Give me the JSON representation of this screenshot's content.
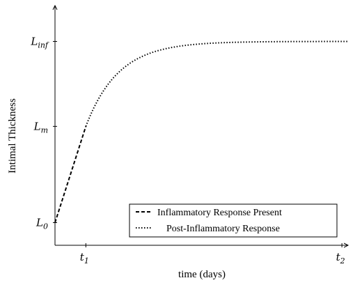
{
  "chart_data": {
    "type": "line",
    "title": "",
    "xlabel": "time (days)",
    "ylabel": "Intimal Thickness",
    "x_ticks": [
      {
        "base": "t",
        "sub": "1",
        "x": 1.0
      },
      {
        "base": "t",
        "sub": "2",
        "x": 9.3
      }
    ],
    "y_ticks": [
      {
        "base": "L",
        "sub": "0",
        "y": 0.0
      },
      {
        "base": "L",
        "sub": "m",
        "y": 0.51
      },
      {
        "base": "L",
        "sub": "inf",
        "y": 0.96
      }
    ],
    "xlim": [
      0,
      9.5
    ],
    "ylim": [
      -0.12,
      1.15
    ],
    "series": [
      {
        "name": "Inflammatory Response Present",
        "style": "dashed",
        "points": [
          [
            0.0,
            0.0
          ],
          [
            1.0,
            0.51
          ]
        ]
      },
      {
        "name": "Post-Inflammatory Response",
        "style": "dotted",
        "asymptote": 0.96,
        "points": [
          [
            1.0,
            0.51
          ],
          [
            1.4,
            0.64
          ],
          [
            1.8,
            0.73
          ],
          [
            2.2,
            0.8
          ],
          [
            2.6,
            0.85
          ],
          [
            3.0,
            0.88
          ],
          [
            3.5,
            0.91
          ],
          [
            4.0,
            0.93
          ],
          [
            4.5,
            0.945
          ],
          [
            5.0,
            0.952
          ],
          [
            6.0,
            0.956
          ],
          [
            7.0,
            0.958
          ],
          [
            8.0,
            0.959
          ],
          [
            9.0,
            0.96
          ],
          [
            9.5,
            0.96
          ]
        ]
      }
    ],
    "legend": {
      "position": "bottom-right",
      "entries": [
        "Inflammatory Response Present",
        "Post-Inflammatory Response"
      ]
    },
    "grid": false
  }
}
